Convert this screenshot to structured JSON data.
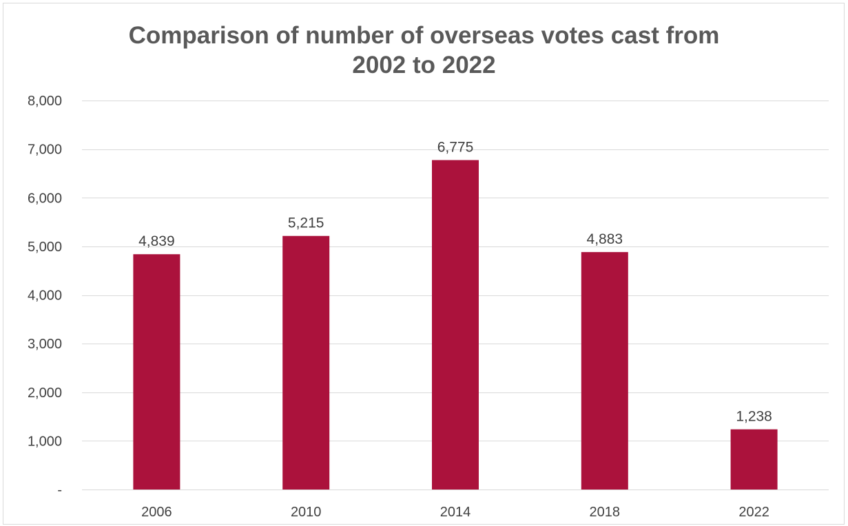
{
  "chart_data": {
    "type": "bar",
    "title": [
      "Comparison of number of overseas votes cast from",
      "2002 to 2022"
    ],
    "categories": [
      "2006",
      "2010",
      "2014",
      "2018",
      "2022"
    ],
    "values": [
      4839,
      5215,
      6775,
      4883,
      1238
    ],
    "data_labels": [
      "4,839",
      "5,215",
      "6,775",
      "4,883",
      "1,238"
    ],
    "ylim": [
      0,
      8000
    ],
    "y_ticks": [
      0,
      1000,
      2000,
      3000,
      4000,
      5000,
      6000,
      7000,
      8000
    ],
    "y_tick_labels": [
      "-",
      "1,000",
      "2,000",
      "3,000",
      "4,000",
      "5,000",
      "6,000",
      "7,000",
      "8,000"
    ],
    "grid": true,
    "legend": "none",
    "colors": {
      "bar": "#AB123C",
      "grid": "#d9d9d9",
      "title": "#595959",
      "text": "#404040"
    }
  }
}
